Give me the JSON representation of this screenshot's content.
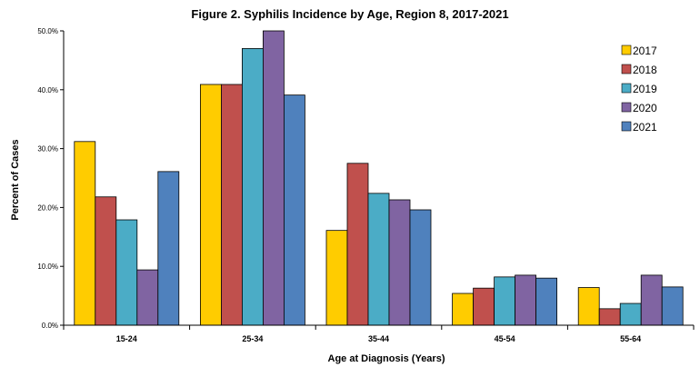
{
  "chart_data": {
    "type": "bar",
    "title": "Figure 2. Syphilis Incidence by Age, Region 8, 2017-2021",
    "xlabel": "Age at Diagnosis (Years)",
    "ylabel": "Percent of Cases",
    "ylim": [
      0,
      50
    ],
    "yticks": [
      "0.0%",
      "10.0%",
      "20.0%",
      "30.0%",
      "40.0%",
      "50.0%"
    ],
    "grid": false,
    "legend_position": "top-right",
    "categories": [
      "15-24",
      "25-34",
      "35-44",
      "45-54",
      "55-64"
    ],
    "series": [
      {
        "name": "2017",
        "color": "#FFCC00",
        "values": [
          31.2,
          40.9,
          16.1,
          5.4,
          6.4
        ]
      },
      {
        "name": "2018",
        "color": "#C0504D",
        "values": [
          21.8,
          40.9,
          27.5,
          6.3,
          2.8
        ]
      },
      {
        "name": "2019",
        "color": "#4BACC6",
        "values": [
          17.9,
          47.0,
          22.4,
          8.2,
          3.7
        ]
      },
      {
        "name": "2020",
        "color": "#8064A2",
        "values": [
          9.4,
          50.0,
          21.3,
          8.5,
          8.5
        ]
      },
      {
        "name": "2021",
        "color": "#4F81BD",
        "values": [
          26.1,
          39.1,
          19.6,
          8.0,
          6.5
        ]
      }
    ]
  }
}
